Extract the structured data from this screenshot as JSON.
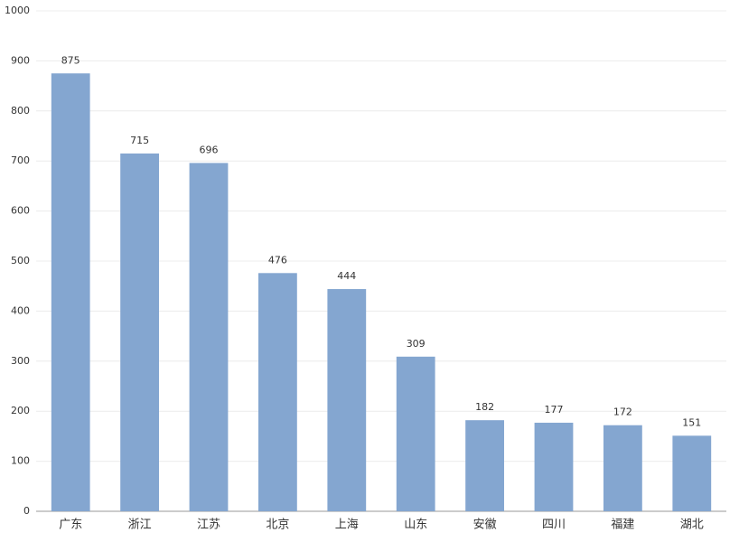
{
  "chart_data": {
    "type": "bar",
    "categories": [
      "广东",
      "浙江",
      "江苏",
      "北京",
      "上海",
      "山东",
      "安徽",
      "四川",
      "福建",
      "湖北"
    ],
    "values": [
      875,
      715,
      696,
      476,
      444,
      309,
      182,
      177,
      172,
      151
    ],
    "color": "#84a6d0",
    "ylim": [
      0,
      1000
    ],
    "yticks": [
      0,
      100,
      200,
      300,
      400,
      500,
      600,
      700,
      800,
      900,
      1000
    ],
    "grid": true
  }
}
